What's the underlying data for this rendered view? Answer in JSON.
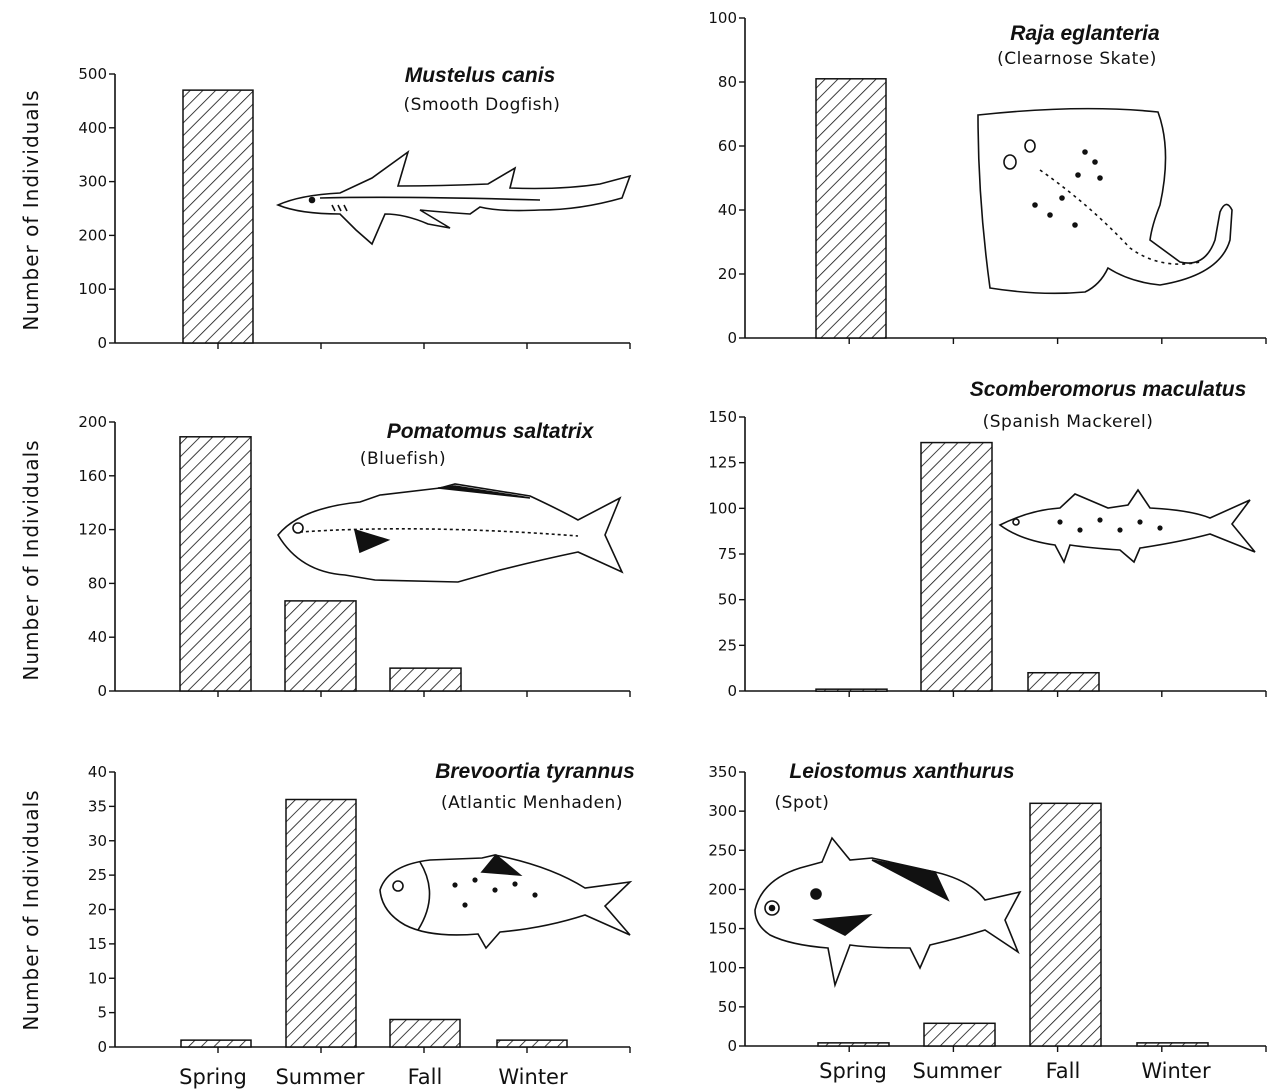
{
  "categories": [
    "Spring",
    "Summer",
    "Fall",
    "Winter"
  ],
  "ylabel": "Number of Individuals",
  "chart_data": [
    {
      "type": "bar",
      "title": "Mustelus canis",
      "subtitle": "(Smooth Dogfish)",
      "ylabel": "Number of Individuals",
      "categories": [
        "Spring",
        "Summer",
        "Fall",
        "Winter"
      ],
      "values": [
        470,
        0,
        0,
        0
      ],
      "ylim": [
        0,
        500
      ],
      "yticks": [
        0,
        100,
        200,
        300,
        400,
        500
      ],
      "icon": "dogfish-illustration"
    },
    {
      "type": "bar",
      "title": "Raja eglanteria",
      "subtitle": "(Clearnose Skate)",
      "ylabel": "",
      "categories": [
        "Spring",
        "Summer",
        "Fall",
        "Winter"
      ],
      "values": [
        81,
        0,
        0,
        0
      ],
      "ylim": [
        0,
        100
      ],
      "yticks": [
        0,
        20,
        40,
        60,
        80,
        100
      ],
      "icon": "skate-illustration"
    },
    {
      "type": "bar",
      "title": "Pomatomus saltatrix",
      "subtitle": "(Bluefish)",
      "ylabel": "Number of Individuals",
      "categories": [
        "Spring",
        "Summer",
        "Fall",
        "Winter"
      ],
      "values": [
        189,
        67,
        17,
        0
      ],
      "ylim": [
        0,
        200
      ],
      "yticks": [
        0,
        40,
        80,
        120,
        160,
        200
      ],
      "icon": "bluefish-illustration"
    },
    {
      "type": "bar",
      "title": "Scomberomorus maculatus",
      "subtitle": "(Spanish Mackerel)",
      "ylabel": "",
      "categories": [
        "Spring",
        "Summer",
        "Fall",
        "Winter"
      ],
      "values": [
        1,
        136,
        10,
        0
      ],
      "ylim": [
        0,
        150
      ],
      "yticks": [
        0,
        25,
        50,
        75,
        100,
        125,
        150
      ],
      "icon": "mackerel-illustration"
    },
    {
      "type": "bar",
      "title": "Brevoortia tyrannus",
      "subtitle": "(Atlantic Menhaden)",
      "ylabel": "Number of Individuals",
      "categories": [
        "Spring",
        "Summer",
        "Fall",
        "Winter"
      ],
      "values": [
        1,
        36,
        4,
        1
      ],
      "ylim": [
        0,
        40
      ],
      "yticks": [
        0,
        5,
        10,
        15,
        20,
        25,
        30,
        35,
        40
      ],
      "icon": "menhaden-illustration"
    },
    {
      "type": "bar",
      "title": "Leiostomus xanthurus",
      "subtitle": "(Spot)",
      "ylabel": "",
      "categories": [
        "Spring",
        "Summer",
        "Fall",
        "Winter"
      ],
      "values": [
        4,
        29,
        310,
        4
      ],
      "ylim": [
        0,
        350
      ],
      "yticks": [
        0,
        50,
        100,
        150,
        200,
        250,
        300,
        350
      ],
      "icon": "spot-illustration"
    }
  ]
}
